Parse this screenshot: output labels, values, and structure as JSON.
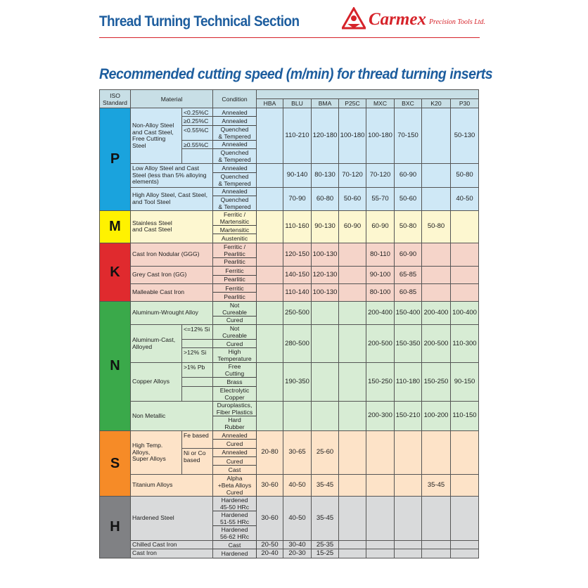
{
  "header": {
    "title": "Thread Turning Technical Section",
    "logo_brand": "Carmex",
    "logo_tagline": "Precision Tools Ltd."
  },
  "subtitle": "Recommended cutting speed (m/min) for thread turning inserts",
  "table": {
    "headers": {
      "iso": "ISO\nStandard",
      "material": "Material",
      "condition": "Condition"
    },
    "grades": [
      "HBA",
      "BLU",
      "BMA",
      "P25C",
      "MXC",
      "BXC",
      "K20",
      "P30"
    ],
    "groups": [
      {
        "iso": "P",
        "color": "#1aa3dd",
        "light": "#cfe8f6",
        "materials": [
          {
            "name": "Non-Alloy Steel\nand Cast Steel,\nFree Cutting Steel",
            "subs": [
              {
                "label": "<0.25%C",
                "conditions": [
                  "Annealed"
                ]
              },
              {
                "label": "≥0.25%C",
                "conditions": [
                  "Annealed"
                ]
              },
              {
                "label": "<0.55%C",
                "conditions": [
                  "Quenched\n& Tempered"
                ]
              },
              {
                "label": "≥0.55%C",
                "conditions": [
                  "Annealed"
                ]
              },
              {
                "label": "",
                "conditions": [
                  "Quenched\n& Tempered"
                ]
              }
            ],
            "speeds": [
              "",
              "110-210",
              "120-180",
              "100-180",
              "100-180",
              "70-150",
              "",
              "50-130"
            ]
          },
          {
            "name": "Low Alloy Steel and Cast\nSteel (less than 5% alloying\nelements)",
            "conditions": [
              "Annealed",
              "Quenched\n& Tempered"
            ],
            "speeds": [
              "",
              "90-140",
              "80-130",
              "70-120",
              "70-120",
              "60-90",
              "",
              "50-80"
            ]
          },
          {
            "name": "High Alloy Steel, Cast Steel,\nand Tool Steel",
            "conditions": [
              "Annealed",
              "Quenched\n& Tempered"
            ],
            "speeds": [
              "",
              "70-90",
              "60-80",
              "50-60",
              "55-70",
              "50-60",
              "",
              "40-50"
            ]
          }
        ]
      },
      {
        "iso": "M",
        "color": "#fff200",
        "light": "#fdf7d0",
        "materials": [
          {
            "name": "Stainless Steel\nand Cast Steel",
            "conditions": [
              "Ferritic /\nMartensitic",
              "Martensitic",
              "Austenitic"
            ],
            "speeds": [
              "",
              "110-160",
              "90-130",
              "60-90",
              "60-90",
              "50-80",
              "50-80",
              ""
            ]
          }
        ]
      },
      {
        "iso": "K",
        "color": "#e02a2e",
        "light": "#f5d4c9",
        "materials": [
          {
            "name": "Cast Iron Nodular (GGG)",
            "conditions": [
              "Ferritic /\nPearlitic",
              "Pearlitic"
            ],
            "speeds": [
              "",
              "120-150",
              "100-130",
              "",
              "80-110",
              "60-90",
              "",
              ""
            ]
          },
          {
            "name": "Grey Cast Iron (GG)",
            "conditions": [
              "Ferritic",
              "Pearlitic"
            ],
            "speeds": [
              "",
              "140-150",
              "120-130",
              "",
              "90-100",
              "65-85",
              "",
              ""
            ]
          },
          {
            "name": "Malleable Cast Iron",
            "conditions": [
              "Ferritic",
              "Pearlitic"
            ],
            "speeds": [
              "",
              "110-140",
              "100-130",
              "",
              "80-100",
              "60-85",
              "",
              ""
            ]
          }
        ]
      },
      {
        "iso": "N",
        "color": "#3aa94a",
        "light": "#d7ecd4",
        "materials": [
          {
            "name": "Aluminum-Wrought Alloy",
            "conditions": [
              "Not\nCureable",
              "Cured"
            ],
            "speeds": [
              "",
              "250-500",
              "",
              "",
              "200-400",
              "150-400",
              "200-400",
              "100-400"
            ]
          },
          {
            "name": "Aluminum-Cast,\nAlloyed",
            "subs": [
              {
                "label": "<=12% Si",
                "conditions": [
                  "Not\nCureable"
                ]
              },
              {
                "label": "",
                "conditions": [
                  "Cured"
                ]
              },
              {
                "label": ">12% Si",
                "conditions": [
                  "High\nTemperature"
                ]
              }
            ],
            "speeds": [
              "",
              "280-500",
              "",
              "",
              "200-500",
              "150-350",
              "200-500",
              "110-300"
            ]
          },
          {
            "name": "Copper Alloys",
            "subs": [
              {
                "label": ">1% Pb",
                "conditions": [
                  "Free\nCutting"
                ]
              },
              {
                "label": "",
                "conditions": [
                  "Brass"
                ]
              },
              {
                "label": "",
                "conditions": [
                  "Electrolytic\nCopper"
                ]
              }
            ],
            "speeds": [
              "",
              "190-350",
              "",
              "",
              "150-250",
              "110-180",
              "150-250",
              "90-150"
            ]
          },
          {
            "name": "Non Metallic",
            "conditions": [
              "Duroplastics,\nFiber Plastics",
              "Hard\nRubber"
            ],
            "speeds": [
              "",
              "",
              "",
              "",
              "200-300",
              "150-210",
              "100-200",
              "110-150"
            ]
          }
        ]
      },
      {
        "iso": "S",
        "color": "#f68b27",
        "light": "#fde3c8",
        "materials": [
          {
            "name": "High Temp. Alloys,\nSuper Alloys",
            "subs": [
              {
                "label": "Fe based",
                "conditions": [
                  "Annealed",
                  "Cured"
                ]
              },
              {
                "label": "Ni or Co\nbased",
                "conditions": [
                  "Annealed",
                  "Cured",
                  "Cast"
                ]
              }
            ],
            "speeds": [
              "20-80",
              "30-65",
              "25-60",
              "",
              "",
              "",
              "",
              ""
            ]
          },
          {
            "name": "Titanium Alloys",
            "conditions": [
              "Alpha\n+Beta Alloys\nCured"
            ],
            "speeds": [
              "30-60",
              "40-50",
              "35-45",
              "",
              "",
              "",
              "35-45",
              ""
            ]
          }
        ]
      },
      {
        "iso": "H",
        "color": "#808184",
        "light": "#d9dadb",
        "materials": [
          {
            "name": "Hardened Steel",
            "conditions": [
              "Hardened\n45-50 HRc",
              "Hardened\n51-55 HRc",
              "Hardened\n56-62 HRc"
            ],
            "speeds": [
              "30-60",
              "40-50",
              "35-45",
              "",
              "",
              "",
              "",
              ""
            ]
          },
          {
            "name": "Chilled Cast Iron",
            "conditions": [
              "Cast"
            ],
            "speeds": [
              "20-50",
              "30-40",
              "25-35",
              "",
              "",
              "",
              "",
              ""
            ]
          },
          {
            "name": "Cast Iron",
            "conditions": [
              "Hardened"
            ],
            "speeds": [
              "20-40",
              "20-30",
              "15-25",
              "",
              "",
              "",
              "",
              ""
            ]
          }
        ]
      }
    ]
  }
}
